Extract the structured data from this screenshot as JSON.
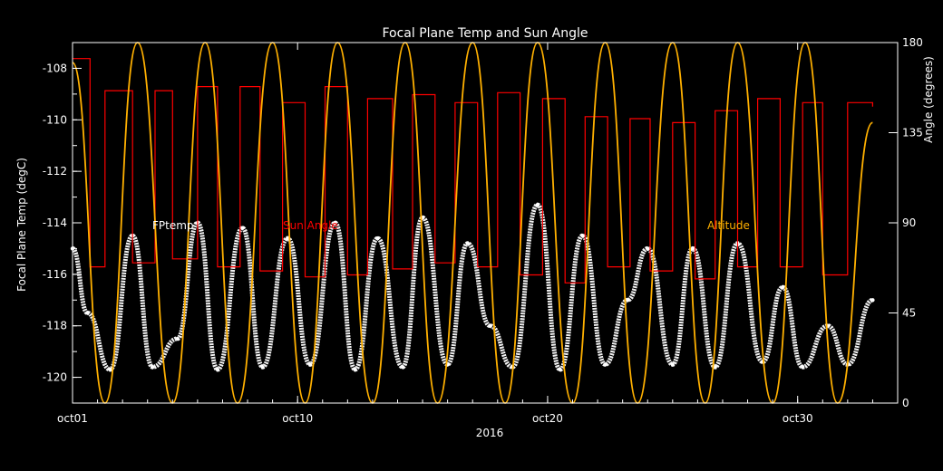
{
  "chart_data": {
    "type": "line",
    "title": "Focal Plane Temp and Sun Angle",
    "xlabel": "2016",
    "ylabel": "Focal Plane Temp (degC)",
    "y2label": "Angle (degrees)",
    "x_range": [
      "2016-10-01",
      "2016-11-03"
    ],
    "x_ticks": [
      {
        "date": "2016-10-01",
        "label": "oct01"
      },
      {
        "date": "2016-10-10",
        "label": "oct10"
      },
      {
        "date": "2016-10-20",
        "label": "oct20"
      },
      {
        "date": "2016-10-30",
        "label": "oct30"
      }
    ],
    "ylim": [
      -121,
      -107
    ],
    "y_ticks": [
      -108,
      -110,
      -112,
      -114,
      -116,
      -118,
      -120
    ],
    "y2lim": [
      0,
      180
    ],
    "y2_ticks": [
      0,
      45,
      90,
      135,
      180
    ],
    "grid": false,
    "legend": [
      {
        "label": "FPtemp",
        "color": "#ffffff"
      },
      {
        "label": "Sun Angle",
        "color": "#ff0000"
      },
      {
        "label": "Altitude",
        "color": "#ffb000"
      }
    ],
    "series": [
      {
        "name": "FPtemp",
        "axis": "left",
        "color": "#ffffff",
        "style": "points",
        "note": "orbital cycle of ~2.67 days",
        "x": [
          "2016-10-01",
          "2016-10-01.6",
          "2016-10-02.5",
          "2016-10-03.4",
          "2016-10-04.2",
          "2016-10-05.2",
          "2016-10-06",
          "2016-10-06.8",
          "2016-10-07.8",
          "2016-10-08.6",
          "2016-10-09.6",
          "2016-10-10.5",
          "2016-10-11.5",
          "2016-10-12.3",
          "2016-10-13.2",
          "2016-10-14.2",
          "2016-10-15",
          "2016-10-16",
          "2016-10-16.8",
          "2016-10-17.7",
          "2016-10-18.6",
          "2016-10-19.6",
          "2016-10-20.5",
          "2016-10-21.4",
          "2016-10-22.3",
          "2016-10-23.2",
          "2016-10-24",
          "2016-10-25",
          "2016-10-25.8",
          "2016-10-26.7",
          "2016-10-27.6",
          "2016-10-28.6",
          "2016-10-29.4",
          "2016-10-30.2",
          "2016-10-31.2",
          "2016-11-01",
          "2016-11-02"
        ],
        "y": [
          -115.0,
          -117.5,
          -119.7,
          -114.5,
          -119.6,
          -118.5,
          -114.0,
          -119.7,
          -114.2,
          -119.6,
          -114.6,
          -119.5,
          -114.0,
          -119.7,
          -114.6,
          -119.6,
          -113.8,
          -119.5,
          -114.8,
          -118.0,
          -119.6,
          -113.3,
          -119.7,
          -114.5,
          -119.5,
          -117.0,
          -115.0,
          -119.5,
          -115.0,
          -119.6,
          -114.8,
          -119.4,
          -116.5,
          -119.6,
          -118.0,
          -119.5,
          -117.0
        ]
      },
      {
        "name": "Sun Angle",
        "axis": "right",
        "color": "#ff0000",
        "style": "step",
        "x": [
          "2016-10-01",
          "2016-10-01.7",
          "2016-10-02.3",
          "2016-10-03.4",
          "2016-10-04.3",
          "2016-10-05.0",
          "2016-10-06.0",
          "2016-10-06.8",
          "2016-10-07.7",
          "2016-10-08.5",
          "2016-10-09.4",
          "2016-10-10.3",
          "2016-10-11.1",
          "2016-10-12.0",
          "2016-10-12.8",
          "2016-10-13.8",
          "2016-10-14.6",
          "2016-10-15.5",
          "2016-10-16.3",
          "2016-10-17.2",
          "2016-10-18.0",
          "2016-10-18.9",
          "2016-10-19.8",
          "2016-10-20.7",
          "2016-10-21.5",
          "2016-10-22.4",
          "2016-10-23.3",
          "2016-10-24.1",
          "2016-10-25.0",
          "2016-10-25.9",
          "2016-10-26.7",
          "2016-10-27.6",
          "2016-10-28.4",
          "2016-10-29.3",
          "2016-10-30.2",
          "2016-10-31.0",
          "2016-11-01.0",
          "2016-11-02.0"
        ],
        "y": [
          172,
          68,
          156,
          70,
          156,
          72,
          158,
          68,
          158,
          66,
          150,
          63,
          158,
          64,
          152,
          67,
          154,
          70,
          150,
          68,
          155,
          64,
          152,
          60,
          143,
          68,
          142,
          66,
          140,
          62,
          146,
          68,
          152,
          68,
          150,
          64,
          150,
          148
        ]
      },
      {
        "name": "Altitude",
        "axis": "right",
        "color": "#ffb000",
        "style": "line",
        "note": "arches peaking at 180 about every 2.67 days",
        "x": [
          "2016-10-01",
          "2016-10-02.3",
          "2016-10-03.6",
          "2016-10-05.0",
          "2016-10-06.3",
          "2016-10-07.6",
          "2016-10-09.0",
          "2016-10-10.3",
          "2016-10-11.6",
          "2016-10-13.0",
          "2016-10-14.3",
          "2016-10-15.6",
          "2016-10-17.0",
          "2016-10-18.3",
          "2016-10-19.6",
          "2016-10-21.0",
          "2016-10-22.3",
          "2016-10-23.6",
          "2016-10-25.0",
          "2016-10-26.3",
          "2016-10-27.6",
          "2016-10-29.0",
          "2016-10-30.3",
          "2016-10-31.6",
          "2016-11-02.0"
        ],
        "y": [
          170,
          0,
          180,
          0,
          180,
          0,
          180,
          0,
          180,
          0,
          180,
          0,
          180,
          0,
          180,
          0,
          180,
          0,
          180,
          0,
          180,
          0,
          180,
          0,
          140
        ]
      }
    ]
  }
}
